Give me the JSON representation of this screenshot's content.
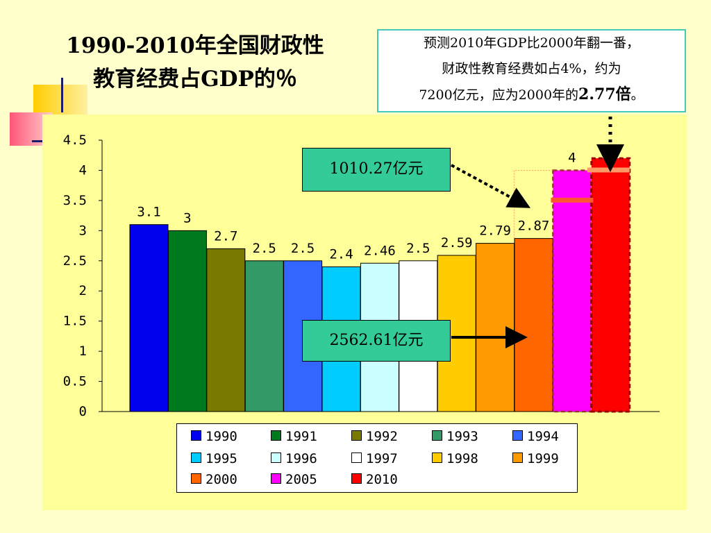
{
  "title_lines": [
    "1990-2010年全国财政性",
    "教育经费占GDP的％"
  ],
  "note": {
    "line1": "预测2010年GDP比2000年翻一番，",
    "line2": "财政性教育经费如占4%，约为",
    "line3_prefix": "7200亿元，应为2000年的",
    "line3_emph": "2.77倍",
    "line3_suffix": "。"
  },
  "callouts": {
    "upper": "1010.27亿元",
    "lower": "2562.61亿元"
  },
  "colors": {
    "background": "#ffffcc",
    "plot_area": "#ffff99",
    "callout_fill": "#33cc99",
    "note_border": "#44c9b8"
  },
  "chart_data": {
    "type": "bar",
    "title": "1990-2010年全国财政性教育经费占GDP的％",
    "categories": [
      "1990",
      "1991",
      "1992",
      "1993",
      "1994",
      "1995",
      "1996",
      "1997",
      "1998",
      "1999",
      "2000",
      "2005",
      "2010"
    ],
    "values": [
      3.1,
      3.0,
      2.7,
      2.5,
      2.5,
      2.4,
      2.46,
      2.5,
      2.59,
      2.79,
      2.87,
      4.0,
      4.2
    ],
    "value_labels": [
      "3.1",
      "3",
      "2.7",
      "2.5",
      "2.5",
      "2.4",
      "2.46",
      "2.5",
      "2.59",
      "2.79",
      "2.87",
      "4",
      ""
    ],
    "colors": [
      "#0000ee",
      "#007a1f",
      "#7a7a00",
      "#339966",
      "#3366ff",
      "#00ccff",
      "#ccffff",
      "#ffffff",
      "#ffcc00",
      "#ff9900",
      "#ff6600",
      "#ff00ff",
      "#ff0000"
    ],
    "ylim": [
      0,
      4.5
    ],
    "yticks": [
      "0",
      "0.5",
      "1",
      "1.5",
      "2",
      "2.5",
      "3",
      "3.5",
      "4",
      "4.5"
    ],
    "legend_position": "bottom",
    "grid": false
  }
}
